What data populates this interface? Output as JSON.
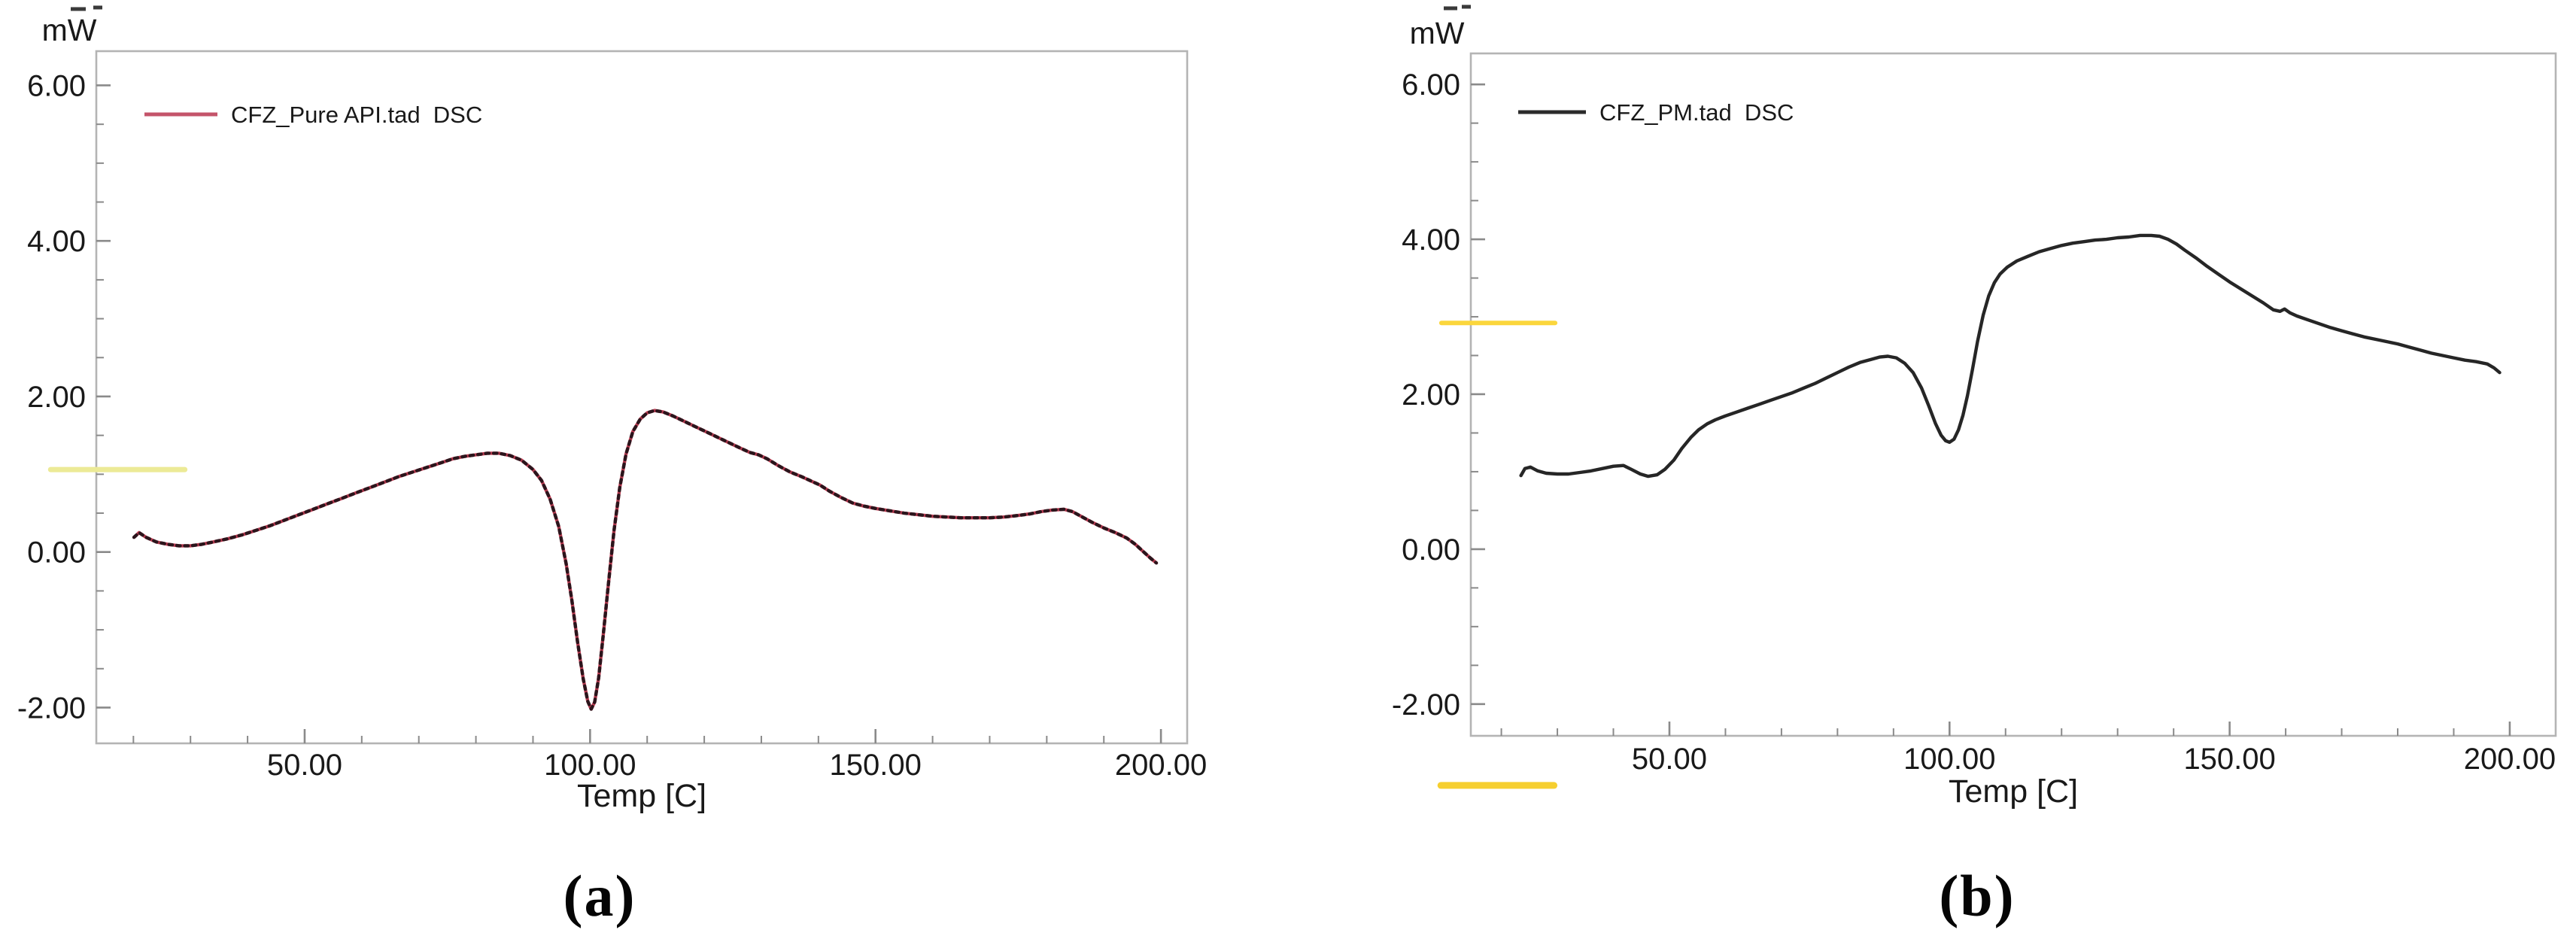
{
  "figure": {
    "background": "#ffffff",
    "panels": [
      {
        "caption": "(a)"
      },
      {
        "caption": "(b)"
      }
    ]
  },
  "chart_data": [
    {
      "type": "line",
      "panel": "a",
      "y_unit_label": "mW",
      "xlabel": "Temp [C]",
      "xlim": [
        13.5,
        204.6
      ],
      "ylim": [
        -2.46,
        6.44
      ],
      "grid": false,
      "legend_position": "top-left-inside",
      "x_ticks": {
        "major": [
          50,
          100,
          150,
          200
        ],
        "labels": [
          "50.00",
          "100.00",
          "150.00",
          "200.00"
        ],
        "minor_step": 10
      },
      "y_ticks": {
        "major": [
          6,
          4,
          2,
          0,
          -2
        ],
        "labels": [
          "6.00",
          "4.00",
          "2.00",
          "0.00",
          "-2.00"
        ],
        "minor_step": 0.5
      },
      "legend": {
        "label": "CFZ_Pure API.tad  DSC",
        "line_color": "#c4546a"
      },
      "series": [
        {
          "name": "CFZ_Pure API.tad DSC",
          "color": "#bb3c52",
          "dot_overlay_color": "#1c1116",
          "points": [
            [
              20.1,
              0.19
            ],
            [
              21,
              0.25
            ],
            [
              22.2,
              0.19
            ],
            [
              24,
              0.13
            ],
            [
              26,
              0.1
            ],
            [
              28,
              0.08
            ],
            [
              30,
              0.08
            ],
            [
              32,
              0.1
            ],
            [
              34,
              0.13
            ],
            [
              36.5,
              0.17
            ],
            [
              39,
              0.22
            ],
            [
              41.5,
              0.28
            ],
            [
              44,
              0.34
            ],
            [
              46.5,
              0.41
            ],
            [
              49,
              0.48
            ],
            [
              51.5,
              0.55
            ],
            [
              54,
              0.62
            ],
            [
              56.5,
              0.69
            ],
            [
              59,
              0.76
            ],
            [
              61.5,
              0.83
            ],
            [
              64,
              0.9
            ],
            [
              66.5,
              0.97
            ],
            [
              69,
              1.03
            ],
            [
              71.5,
              1.09
            ],
            [
              74,
              1.15
            ],
            [
              76,
              1.2
            ],
            [
              78,
              1.23
            ],
            [
              80,
              1.25
            ],
            [
              82,
              1.27
            ],
            [
              84,
              1.27
            ],
            [
              86,
              1.24
            ],
            [
              88,
              1.18
            ],
            [
              90,
              1.06
            ],
            [
              91.5,
              0.92
            ],
            [
              93,
              0.68
            ],
            [
              94.5,
              0.33
            ],
            [
              95.8,
              -0.15
            ],
            [
              96.8,
              -0.62
            ],
            [
              97.8,
              -1.15
            ],
            [
              98.8,
              -1.63
            ],
            [
              99.6,
              -1.92
            ],
            [
              100.2,
              -2.02
            ],
            [
              100.8,
              -1.93
            ],
            [
              101.5,
              -1.62
            ],
            [
              102.3,
              -1.07
            ],
            [
              103.2,
              -0.42
            ],
            [
              104.2,
              0.28
            ],
            [
              105.2,
              0.83
            ],
            [
              106.3,
              1.26
            ],
            [
              107.5,
              1.55
            ],
            [
              108.8,
              1.71
            ],
            [
              110,
              1.79
            ],
            [
              111.3,
              1.82
            ],
            [
              112.8,
              1.8
            ],
            [
              114.5,
              1.75
            ],
            [
              116.5,
              1.68
            ],
            [
              118.5,
              1.61
            ],
            [
              120.5,
              1.54
            ],
            [
              122.5,
              1.47
            ],
            [
              124.5,
              1.4
            ],
            [
              126.5,
              1.33
            ],
            [
              128,
              1.28
            ],
            [
              129.5,
              1.25
            ],
            [
              131,
              1.2
            ],
            [
              133,
              1.11
            ],
            [
              135,
              1.03
            ],
            [
              137,
              0.97
            ],
            [
              138.8,
              0.91
            ],
            [
              140.3,
              0.86
            ],
            [
              142,
              0.78
            ],
            [
              144,
              0.7
            ],
            [
              146,
              0.63
            ],
            [
              148,
              0.59
            ],
            [
              150,
              0.56
            ],
            [
              152.5,
              0.53
            ],
            [
              155,
              0.5
            ],
            [
              157.5,
              0.48
            ],
            [
              160,
              0.46
            ],
            [
              162.5,
              0.45
            ],
            [
              165,
              0.44
            ],
            [
              167.5,
              0.44
            ],
            [
              170,
              0.44
            ],
            [
              172.5,
              0.45
            ],
            [
              175,
              0.47
            ],
            [
              177,
              0.49
            ],
            [
              179,
              0.52
            ],
            [
              181,
              0.54
            ],
            [
              183,
              0.55
            ],
            [
              184.5,
              0.52
            ],
            [
              186,
              0.46
            ],
            [
              188,
              0.38
            ],
            [
              190,
              0.31
            ],
            [
              192,
              0.25
            ],
            [
              194,
              0.18
            ],
            [
              195.5,
              0.1
            ],
            [
              197,
              0.0
            ],
            [
              198.2,
              -0.08
            ],
            [
              199.2,
              -0.14
            ]
          ]
        }
      ],
      "markers": [
        {
          "name": "baseline-marker",
          "mw": 1.06,
          "t_start": 5.5,
          "t_end": 29.0,
          "color": "#ecea96",
          "width": 7
        }
      ]
    },
    {
      "type": "line",
      "panel": "b",
      "y_unit_label": "mW",
      "xlabel": "Temp [C]",
      "xlim": [
        14.55,
        208.2
      ],
      "ylim": [
        -2.41,
        6.4
      ],
      "grid": false,
      "legend_position": "top-left-inside",
      "x_ticks": {
        "major": [
          50,
          100,
          150,
          200
        ],
        "labels": [
          "50.00",
          "100.00",
          "150.00",
          "200.00"
        ],
        "minor_step": 10
      },
      "y_ticks": {
        "major": [
          6,
          4,
          2,
          0,
          -2
        ],
        "labels": [
          "6.00",
          "4.00",
          "2.00",
          "0.00",
          "-2.00"
        ],
        "minor_step": 0.5
      },
      "legend": {
        "label": "CFZ_PM.tad  DSC",
        "line_color": "#2b2b2b"
      },
      "series": [
        {
          "name": "CFZ_PM.tad DSC",
          "color": "#262626",
          "dot_overlay_color": null,
          "points": [
            [
              23.5,
              0.95
            ],
            [
              24.2,
              1.04
            ],
            [
              25.2,
              1.06
            ],
            [
              26.5,
              1.01
            ],
            [
              28,
              0.98
            ],
            [
              30,
              0.97
            ],
            [
              32,
              0.97
            ],
            [
              34,
              0.99
            ],
            [
              36,
              1.01
            ],
            [
              38,
              1.04
            ],
            [
              40,
              1.07
            ],
            [
              41.8,
              1.08
            ],
            [
              43.2,
              1.03
            ],
            [
              44.8,
              0.97
            ],
            [
              46.2,
              0.94
            ],
            [
              47.8,
              0.96
            ],
            [
              49.2,
              1.03
            ],
            [
              50.8,
              1.15
            ],
            [
              52.2,
              1.3
            ],
            [
              53.8,
              1.44
            ],
            [
              55.2,
              1.54
            ],
            [
              56.8,
              1.62
            ],
            [
              58.2,
              1.67
            ],
            [
              60,
              1.72
            ],
            [
              62,
              1.77
            ],
            [
              64,
              1.82
            ],
            [
              66,
              1.87
            ],
            [
              68,
              1.92
            ],
            [
              70,
              1.97
            ],
            [
              72,
              2.02
            ],
            [
              74,
              2.08
            ],
            [
              76,
              2.14
            ],
            [
              78,
              2.21
            ],
            [
              80,
              2.28
            ],
            [
              82,
              2.35
            ],
            [
              84,
              2.41
            ],
            [
              86,
              2.45
            ],
            [
              87.5,
              2.48
            ],
            [
              89,
              2.49
            ],
            [
              90.5,
              2.47
            ],
            [
              92,
              2.4
            ],
            [
              93.5,
              2.28
            ],
            [
              95,
              2.08
            ],
            [
              96.3,
              1.85
            ],
            [
              97.5,
              1.62
            ],
            [
              98.5,
              1.47
            ],
            [
              99.3,
              1.4
            ],
            [
              100,
              1.38
            ],
            [
              100.8,
              1.42
            ],
            [
              101.6,
              1.54
            ],
            [
              102.4,
              1.73
            ],
            [
              103.2,
              1.98
            ],
            [
              104.1,
              2.32
            ],
            [
              105,
              2.68
            ],
            [
              106,
              3.02
            ],
            [
              107,
              3.27
            ],
            [
              108,
              3.44
            ],
            [
              109,
              3.55
            ],
            [
              110.3,
              3.64
            ],
            [
              112,
              3.72
            ],
            [
              114,
              3.78
            ],
            [
              116,
              3.84
            ],
            [
              118,
              3.88
            ],
            [
              120,
              3.92
            ],
            [
              122,
              3.95
            ],
            [
              124,
              3.97
            ],
            [
              126,
              3.99
            ],
            [
              128,
              4.0
            ],
            [
              130,
              4.02
            ],
            [
              132,
              4.03
            ],
            [
              134,
              4.05
            ],
            [
              136,
              4.05
            ],
            [
              137.5,
              4.04
            ],
            [
              139,
              4.0
            ],
            [
              140.5,
              3.94
            ],
            [
              142,
              3.86
            ],
            [
              144,
              3.76
            ],
            [
              146,
              3.65
            ],
            [
              148,
              3.55
            ],
            [
              150,
              3.45
            ],
            [
              152,
              3.36
            ],
            [
              154,
              3.27
            ],
            [
              156,
              3.18
            ],
            [
              157.8,
              3.09
            ],
            [
              159,
              3.07
            ],
            [
              159.8,
              3.1
            ],
            [
              160.8,
              3.05
            ],
            [
              162,
              3.01
            ],
            [
              164,
              2.96
            ],
            [
              166,
              2.91
            ],
            [
              168,
              2.86
            ],
            [
              170,
              2.82
            ],
            [
              172,
              2.78
            ],
            [
              174,
              2.74
            ],
            [
              176,
              2.71
            ],
            [
              178,
              2.68
            ],
            [
              180,
              2.65
            ],
            [
              182,
              2.61
            ],
            [
              184,
              2.57
            ],
            [
              186,
              2.53
            ],
            [
              188,
              2.5
            ],
            [
              190,
              2.47
            ],
            [
              192,
              2.44
            ],
            [
              194,
              2.42
            ],
            [
              196,
              2.39
            ],
            [
              197.2,
              2.34
            ],
            [
              198.2,
              2.28
            ]
          ]
        }
      ],
      "markers": [
        {
          "name": "baseline-marker",
          "mw": 2.92,
          "t_start": 9.3,
          "t_end": 29.6,
          "color": "#fbd63c",
          "width": 6
        },
        {
          "name": "baseline-marker-lower",
          "mw": -3.05,
          "t_start": 9.2,
          "t_end": 29.4,
          "color": "#f6cf2f",
          "width": 9
        }
      ]
    }
  ]
}
